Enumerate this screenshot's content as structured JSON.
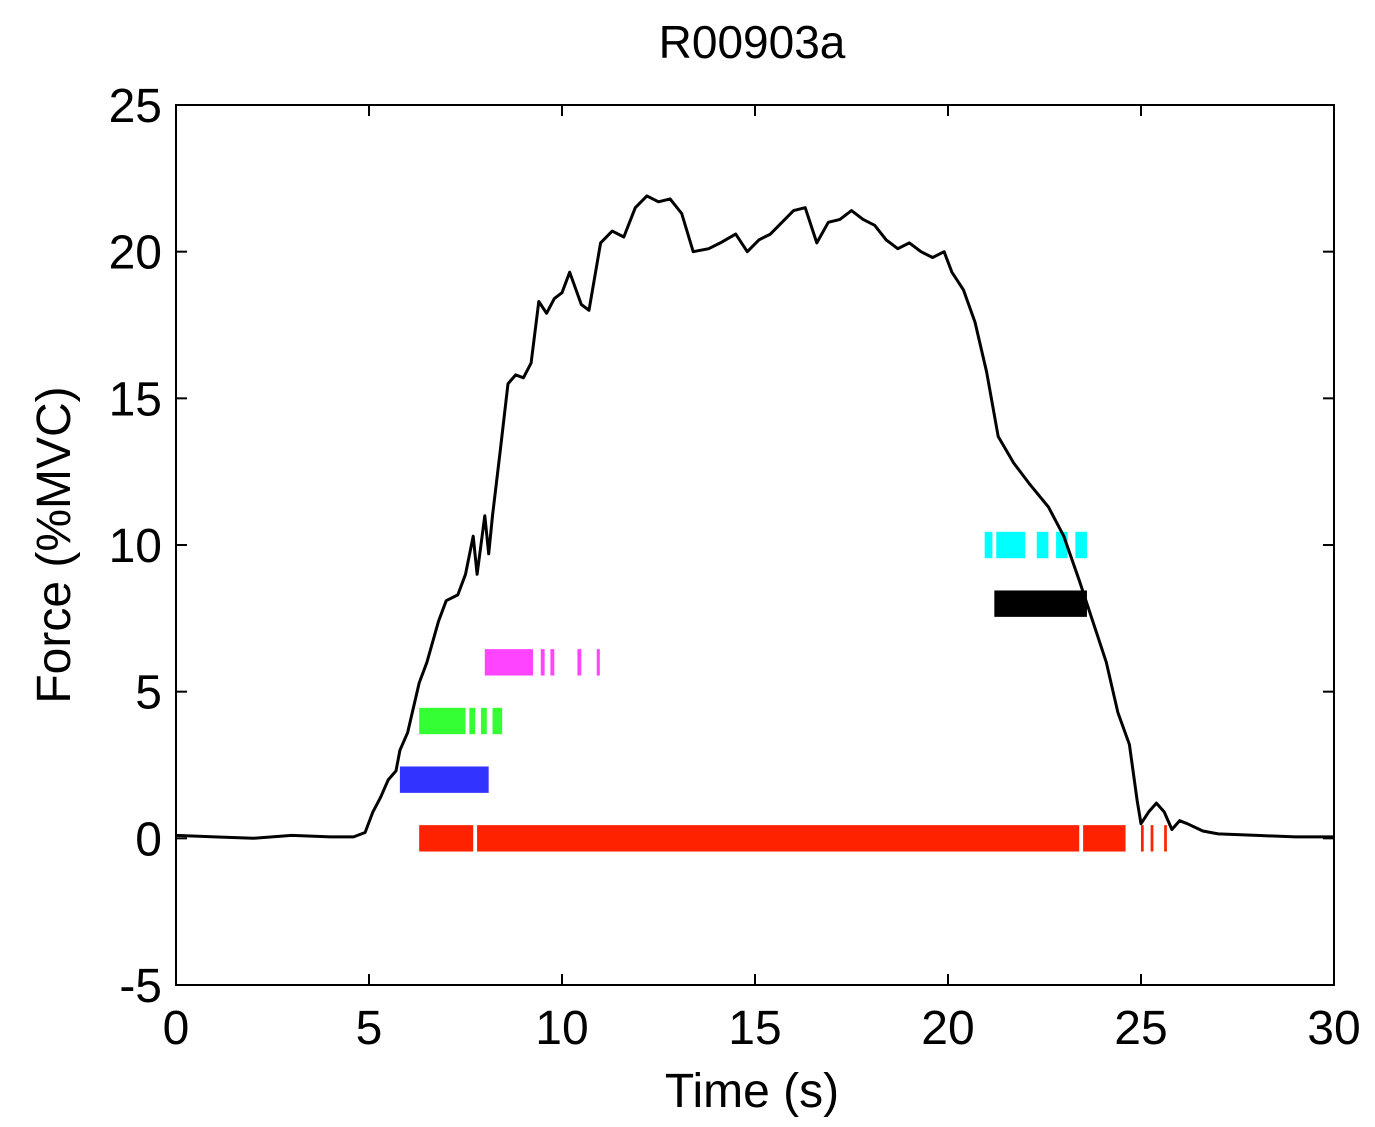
{
  "chart_data": {
    "type": "line",
    "title": "R00903a",
    "xlabel": "Time (s)",
    "ylabel": "Force (%MVC)",
    "xlim": [
      0,
      30
    ],
    "ylim": [
      -5,
      25
    ],
    "xticks": [
      0,
      5,
      10,
      15,
      20,
      25,
      30
    ],
    "yticks": [
      -5,
      0,
      5,
      10,
      15,
      20,
      25
    ],
    "xtick_labels": [
      "0",
      "5",
      "10",
      "15",
      "20",
      "25",
      "30"
    ],
    "ytick_labels": [
      "-5",
      "0",
      "5",
      "10",
      "15",
      "20",
      "25"
    ],
    "grid": false,
    "series": [
      {
        "color": "#000000",
        "points": [
          [
            0,
            0.1
          ],
          [
            1,
            0.05
          ],
          [
            2,
            0.0
          ],
          [
            3,
            0.1
          ],
          [
            4,
            0.05
          ],
          [
            4.6,
            0.05
          ],
          [
            4.9,
            0.2
          ],
          [
            5.1,
            0.9
          ],
          [
            5.3,
            1.4
          ],
          [
            5.5,
            2.0
          ],
          [
            5.7,
            2.3
          ],
          [
            5.8,
            3.0
          ],
          [
            6.0,
            3.6
          ],
          [
            6.3,
            5.3
          ],
          [
            6.5,
            6.0
          ],
          [
            6.8,
            7.4
          ],
          [
            7.0,
            8.1
          ],
          [
            7.3,
            8.3
          ],
          [
            7.5,
            9.0
          ],
          [
            7.7,
            10.3
          ],
          [
            7.8,
            9.0
          ],
          [
            8.0,
            11.0
          ],
          [
            8.1,
            9.7
          ],
          [
            8.2,
            11.0
          ],
          [
            8.4,
            13.2
          ],
          [
            8.6,
            15.5
          ],
          [
            8.8,
            15.8
          ],
          [
            9.0,
            15.7
          ],
          [
            9.2,
            16.2
          ],
          [
            9.4,
            18.3
          ],
          [
            9.6,
            17.9
          ],
          [
            9.8,
            18.4
          ],
          [
            10.0,
            18.6
          ],
          [
            10.2,
            19.3
          ],
          [
            10.5,
            18.2
          ],
          [
            10.7,
            18.0
          ],
          [
            11.0,
            20.3
          ],
          [
            11.3,
            20.7
          ],
          [
            11.6,
            20.5
          ],
          [
            11.9,
            21.5
          ],
          [
            12.2,
            21.9
          ],
          [
            12.5,
            21.7
          ],
          [
            12.8,
            21.8
          ],
          [
            13.1,
            21.3
          ],
          [
            13.4,
            20.0
          ],
          [
            13.8,
            20.1
          ],
          [
            14.1,
            20.3
          ],
          [
            14.5,
            20.6
          ],
          [
            14.8,
            20.0
          ],
          [
            15.1,
            20.4
          ],
          [
            15.4,
            20.6
          ],
          [
            15.7,
            21.0
          ],
          [
            16.0,
            21.4
          ],
          [
            16.3,
            21.5
          ],
          [
            16.6,
            20.3
          ],
          [
            16.9,
            21.0
          ],
          [
            17.2,
            21.1
          ],
          [
            17.5,
            21.4
          ],
          [
            17.8,
            21.1
          ],
          [
            18.1,
            20.9
          ],
          [
            18.4,
            20.4
          ],
          [
            18.7,
            20.1
          ],
          [
            19.0,
            20.3
          ],
          [
            19.3,
            20.0
          ],
          [
            19.6,
            19.8
          ],
          [
            19.9,
            20.0
          ],
          [
            20.1,
            19.3
          ],
          [
            20.4,
            18.7
          ],
          [
            20.7,
            17.6
          ],
          [
            21.0,
            15.9
          ],
          [
            21.3,
            13.7
          ],
          [
            21.7,
            12.8
          ],
          [
            22.1,
            12.1
          ],
          [
            22.6,
            11.3
          ],
          [
            23.0,
            10.3
          ],
          [
            23.4,
            8.8
          ],
          [
            23.8,
            7.2
          ],
          [
            24.1,
            6.0
          ],
          [
            24.4,
            4.3
          ],
          [
            24.7,
            3.2
          ],
          [
            24.9,
            1.3
          ],
          [
            25.0,
            0.5
          ],
          [
            25.2,
            0.9
          ],
          [
            25.4,
            1.2
          ],
          [
            25.6,
            0.9
          ],
          [
            25.8,
            0.3
          ],
          [
            26.0,
            0.6
          ],
          [
            26.2,
            0.5
          ],
          [
            26.6,
            0.25
          ],
          [
            27.0,
            0.15
          ],
          [
            28.0,
            0.1
          ],
          [
            29.0,
            0.05
          ],
          [
            30.0,
            0.05
          ]
        ]
      }
    ],
    "bars": [
      {
        "color": "#3333ff",
        "y": 2.0,
        "height": 0.9,
        "segments": [
          [
            5.8,
            8.1
          ]
        ]
      },
      {
        "color": "#33ff33",
        "y": 4.0,
        "height": 0.9,
        "segments": [
          [
            6.3,
            7.5
          ],
          [
            7.6,
            7.75
          ],
          [
            7.9,
            8.05
          ],
          [
            8.2,
            8.45
          ]
        ]
      },
      {
        "color": "#ff44ff",
        "y": 6.0,
        "height": 0.9,
        "segments": [
          [
            8.0,
            9.25
          ],
          [
            9.45,
            9.55
          ],
          [
            9.7,
            9.8
          ],
          [
            10.4,
            10.5
          ],
          [
            10.9,
            10.98
          ]
        ]
      },
      {
        "color": "#000000",
        "y": 8.0,
        "height": 0.9,
        "segments": [
          [
            21.2,
            23.6
          ]
        ]
      },
      {
        "color": "#00ffff",
        "y": 10.0,
        "height": 0.9,
        "segments": [
          [
            20.95,
            21.15
          ],
          [
            21.25,
            22.0
          ],
          [
            22.3,
            22.6
          ],
          [
            22.8,
            23.1
          ],
          [
            23.3,
            23.6
          ]
        ]
      },
      {
        "color": "#ff2200",
        "y": 0.0,
        "height": 0.9,
        "segments": [
          [
            6.3,
            7.7
          ],
          [
            7.8,
            23.4
          ],
          [
            23.5,
            24.6
          ],
          [
            25.0,
            25.07
          ],
          [
            25.25,
            25.32
          ],
          [
            25.6,
            25.67
          ]
        ]
      }
    ]
  }
}
